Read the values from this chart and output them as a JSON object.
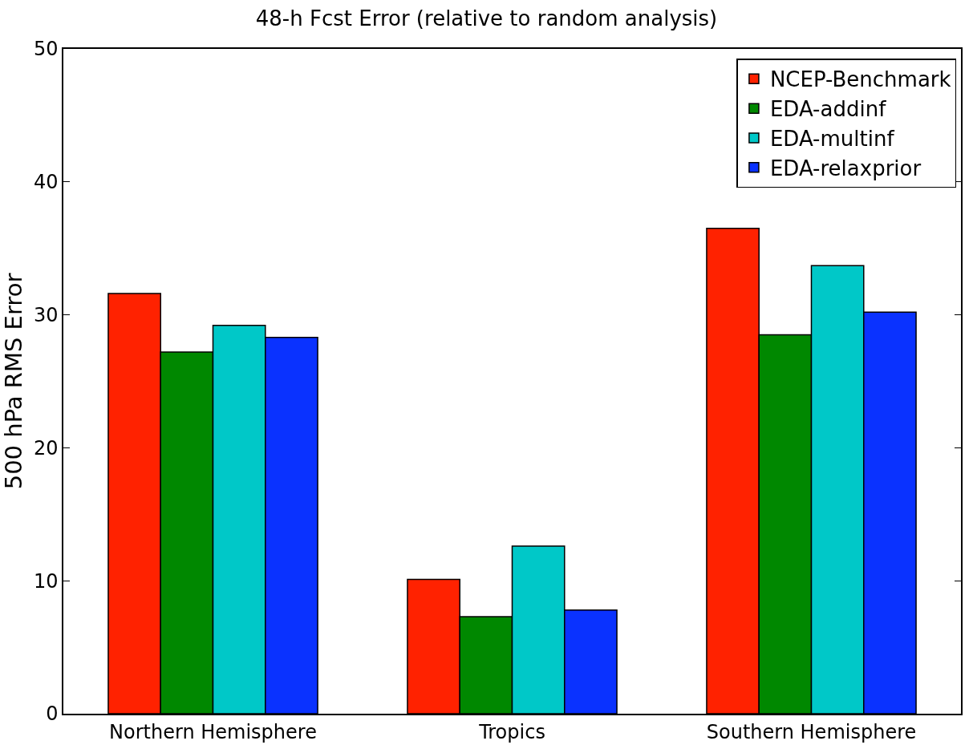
{
  "chart_data": {
    "type": "bar",
    "title": "48-h Fcst Error (relative to random analysis)",
    "ylabel": "500 hPa RMS Error",
    "categories": [
      "Northern Hemisphere",
      "Tropics",
      "Southern Hemisphere"
    ],
    "series": [
      {
        "name": "NCEP-Benchmark",
        "color": "#ff2200",
        "values": [
          31.6,
          10.1,
          36.5
        ]
      },
      {
        "name": "EDA-addinf",
        "color": "#008800",
        "values": [
          27.2,
          7.3,
          28.5
        ]
      },
      {
        "name": "EDA-multinf",
        "color": "#00c8c8",
        "values": [
          29.2,
          12.6,
          33.7
        ]
      },
      {
        "name": "EDA-relaxprior",
        "color": "#0a32ff",
        "values": [
          28.3,
          7.8,
          30.2
        ]
      }
    ],
    "ylim": [
      0,
      50
    ],
    "yticks": [
      0,
      10,
      20,
      30,
      40,
      50
    ],
    "grid": false,
    "legend": "top right"
  }
}
